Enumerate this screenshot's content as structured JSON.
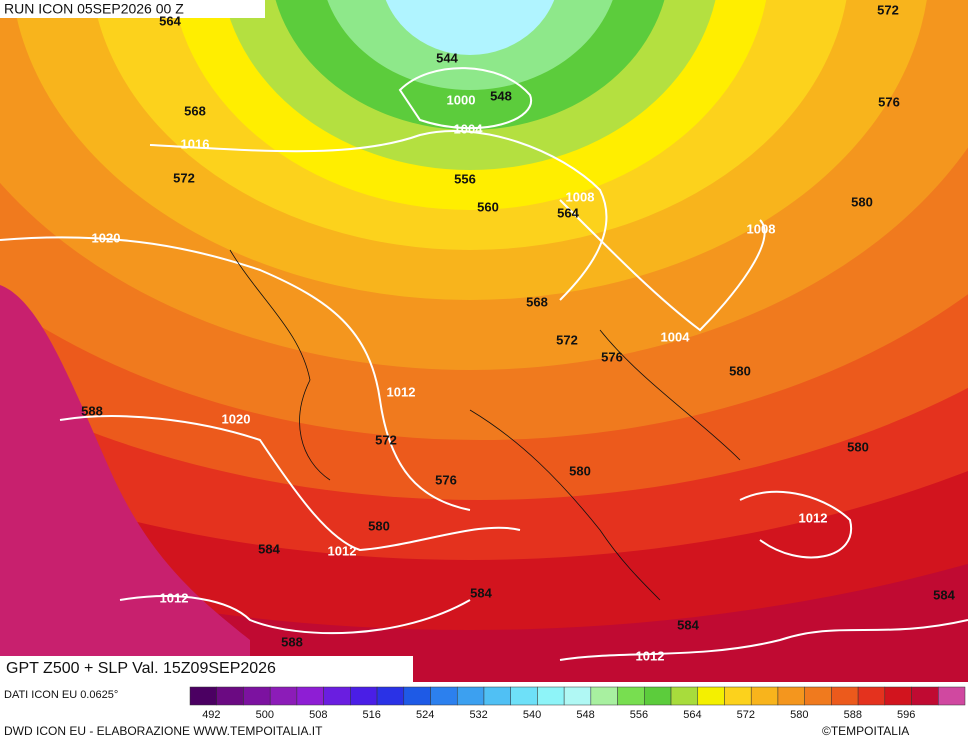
{
  "header": {
    "title": "RUN ICON 05SEP2026 00 Z"
  },
  "map": {
    "geopotential_labels": [
      564,
      572,
      544,
      548,
      568,
      576,
      572,
      556,
      560,
      564,
      580,
      568,
      572,
      576,
      580,
      588,
      572,
      576,
      580,
      580,
      580,
      584,
      584,
      584,
      584,
      588
    ],
    "pressure_labels": [
      1000,
      1004,
      1016,
      1008,
      1008,
      1020,
      1004,
      1012,
      1020,
      1012,
      1012,
      1012,
      1012
    ]
  },
  "footer": {
    "title": "GPT Z500 + SLP Val. 15Z09SEP2026",
    "source": "DATI ICON EU 0.0625°",
    "credit": "DWD ICON EU - ELABORAZIONE WWW.TEMPOITALIA.IT",
    "logo": "©TEMPOITALIA"
  },
  "colorbar": {
    "colors": [
      "#4b0062",
      "#6b0a82",
      "#7c12a0",
      "#8c1cb8",
      "#8e1ed4",
      "#6a1ee0",
      "#4a1ee6",
      "#2a32e6",
      "#1e5ae6",
      "#2c80ee",
      "#3ca0f0",
      "#50c0f4",
      "#6ee0f8",
      "#8ef4f8",
      "#b0f8f4",
      "#a8f0a0",
      "#78de50",
      "#5ccc3c",
      "#a8dc3c",
      "#f4f000",
      "#fcd21c",
      "#f8b41c",
      "#f4961e",
      "#f07a1e",
      "#ec5a1c",
      "#e4321e",
      "#d2141e",
      "#c00a32",
      "#d048a0"
    ],
    "ticks": [
      492,
      500,
      508,
      516,
      524,
      532,
      540,
      548,
      556,
      564,
      572,
      580,
      588,
      596
    ]
  }
}
